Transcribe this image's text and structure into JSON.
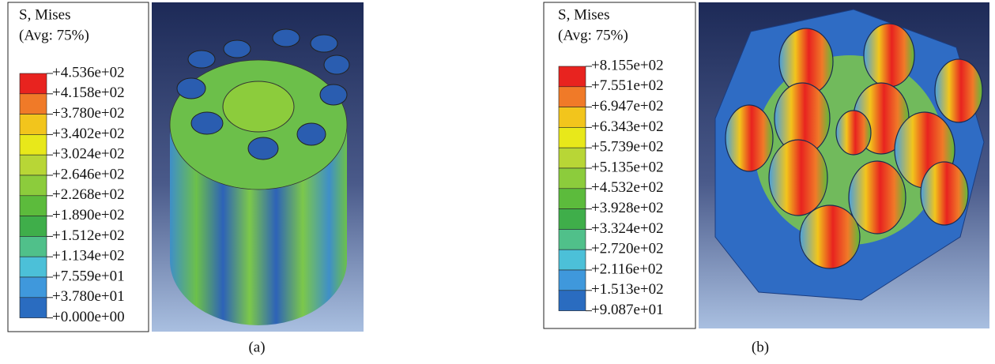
{
  "panels": [
    {
      "caption": "(a)",
      "legend": {
        "title": [
          "S, Mises",
          "(Avg:  75%)"
        ],
        "values": [
          "+4.536e+02",
          "+4.158e+02",
          "+3.780e+02",
          "+3.402e+02",
          "+3.024e+02",
          "+2.646e+02",
          "+2.268e+02",
          "+1.890e+02",
          "+1.512e+02",
          "+1.134e+02",
          "+7.559e+01",
          "+3.780e+01",
          "+0.000e+00"
        ]
      }
    },
    {
      "caption": "(b)",
      "legend": {
        "title": [
          "S, Mises",
          "(Avg:  75%)"
        ],
        "values": [
          "+8.155e+02",
          "+7.551e+02",
          "+6.947e+02",
          "+6.343e+02",
          "+5.739e+02",
          "+5.135e+02",
          "+4.532e+02",
          "+3.928e+02",
          "+3.324e+02",
          "+2.720e+02",
          "+2.116e+02",
          "+1.513e+02",
          "+9.087e+01"
        ]
      }
    }
  ],
  "legend_colors": [
    "#e8231f",
    "#f07a28",
    "#f2c51c",
    "#e8e81a",
    "#b8d636",
    "#8ccc3c",
    "#5cbb3c",
    "#3fae4a",
    "#50c08a",
    "#4cc0d8",
    "#3f98dc",
    "#2a6cc0",
    "#1e45a8"
  ]
}
